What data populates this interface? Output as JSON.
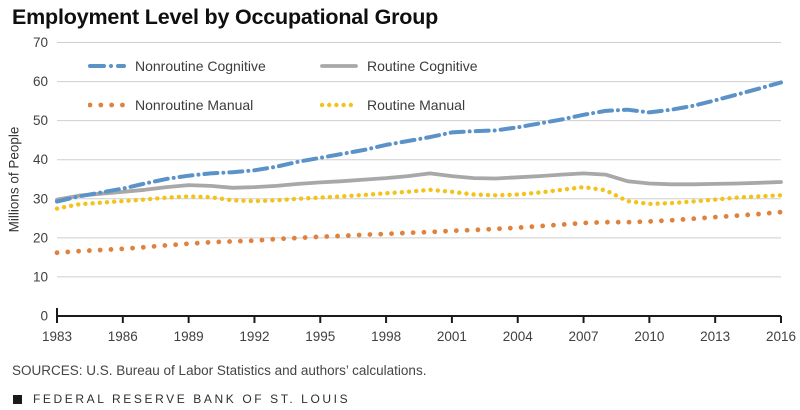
{
  "title": "Employment Level by Occupational Group",
  "y_axis": {
    "label": "Millions of People",
    "ticks": [
      0,
      10,
      20,
      30,
      40,
      50,
      60,
      70
    ]
  },
  "x_axis": {
    "ticks": [
      1983,
      1986,
      1989,
      1992,
      1995,
      1998,
      2001,
      2004,
      2007,
      2010,
      2013,
      2016
    ]
  },
  "footer": {
    "sources": "SOURCES: U.S. Bureau of Labor Statistics and authors’ calculations.",
    "bank": "FEDERAL RESERVE BANK OF ST. LOUIS"
  },
  "colors": {
    "nonroutine_cognitive": "#5b92c8",
    "routine_cognitive": "#a8a8a8",
    "nonroutine_manual": "#e0813e",
    "routine_manual": "#f3c31a",
    "gridline": "#cfcfcf",
    "axis": "#1a1a1a"
  },
  "chart_data": {
    "type": "line",
    "title": "Employment Level by Occupational Group",
    "xlabel": "",
    "ylabel": "Millions of People",
    "ylim": [
      0,
      70
    ],
    "xlim": [
      1983,
      2016
    ],
    "grid": "horizontal",
    "legend_position": "top-left-inside",
    "x": [
      1983,
      1984,
      1985,
      1986,
      1987,
      1988,
      1989,
      1990,
      1991,
      1992,
      1993,
      1994,
      1995,
      1996,
      1997,
      1998,
      1999,
      2000,
      2001,
      2002,
      2003,
      2004,
      2005,
      2006,
      2007,
      2008,
      2009,
      2010,
      2011,
      2012,
      2013,
      2014,
      2015,
      2016
    ],
    "series": [
      {
        "name": "Nonroutine Cognitive",
        "color": "#5b92c8",
        "style": "dashdot",
        "values": [
          29.3,
          30.6,
          31.6,
          32.6,
          33.9,
          35.1,
          35.9,
          36.5,
          36.8,
          37.3,
          38.2,
          39.5,
          40.5,
          41.5,
          42.5,
          43.8,
          44.8,
          45.8,
          47.0,
          47.3,
          47.5,
          48.3,
          49.3,
          50.3,
          51.5,
          52.5,
          52.8,
          52.1,
          52.8,
          53.8,
          55.2,
          56.7,
          58.2,
          59.8
        ]
      },
      {
        "name": "Routine Cognitive",
        "color": "#a8a8a8",
        "style": "solid",
        "values": [
          29.8,
          30.8,
          31.3,
          31.8,
          32.3,
          33.0,
          33.5,
          33.3,
          32.8,
          33.0,
          33.3,
          33.8,
          34.2,
          34.5,
          34.9,
          35.3,
          35.8,
          36.5,
          35.8,
          35.3,
          35.2,
          35.5,
          35.8,
          36.2,
          36.5,
          36.2,
          34.5,
          33.9,
          33.7,
          33.7,
          33.8,
          33.9,
          34.1,
          34.3
        ]
      },
      {
        "name": "Nonroutine Manual",
        "color": "#e0813e",
        "style": "dotted-large",
        "values": [
          16.2,
          16.6,
          16.9,
          17.2,
          17.6,
          18.1,
          18.5,
          18.9,
          19.1,
          19.3,
          19.7,
          20.0,
          20.3,
          20.5,
          20.8,
          21.0,
          21.3,
          21.5,
          21.8,
          22.0,
          22.3,
          22.6,
          23.0,
          23.4,
          23.8,
          24.0,
          24.0,
          24.2,
          24.5,
          24.9,
          25.3,
          25.7,
          26.1,
          26.6
        ]
      },
      {
        "name": "Routine Manual",
        "color": "#f3c31a",
        "style": "dotted-small",
        "values": [
          27.5,
          28.6,
          29.0,
          29.4,
          29.8,
          30.3,
          30.6,
          30.4,
          29.6,
          29.4,
          29.6,
          30.0,
          30.3,
          30.6,
          31.0,
          31.4,
          31.8,
          32.3,
          31.8,
          31.1,
          30.9,
          31.1,
          31.6,
          32.3,
          33.0,
          32.2,
          29.4,
          28.7,
          28.9,
          29.3,
          29.8,
          30.3,
          30.6,
          30.9
        ]
      }
    ]
  }
}
